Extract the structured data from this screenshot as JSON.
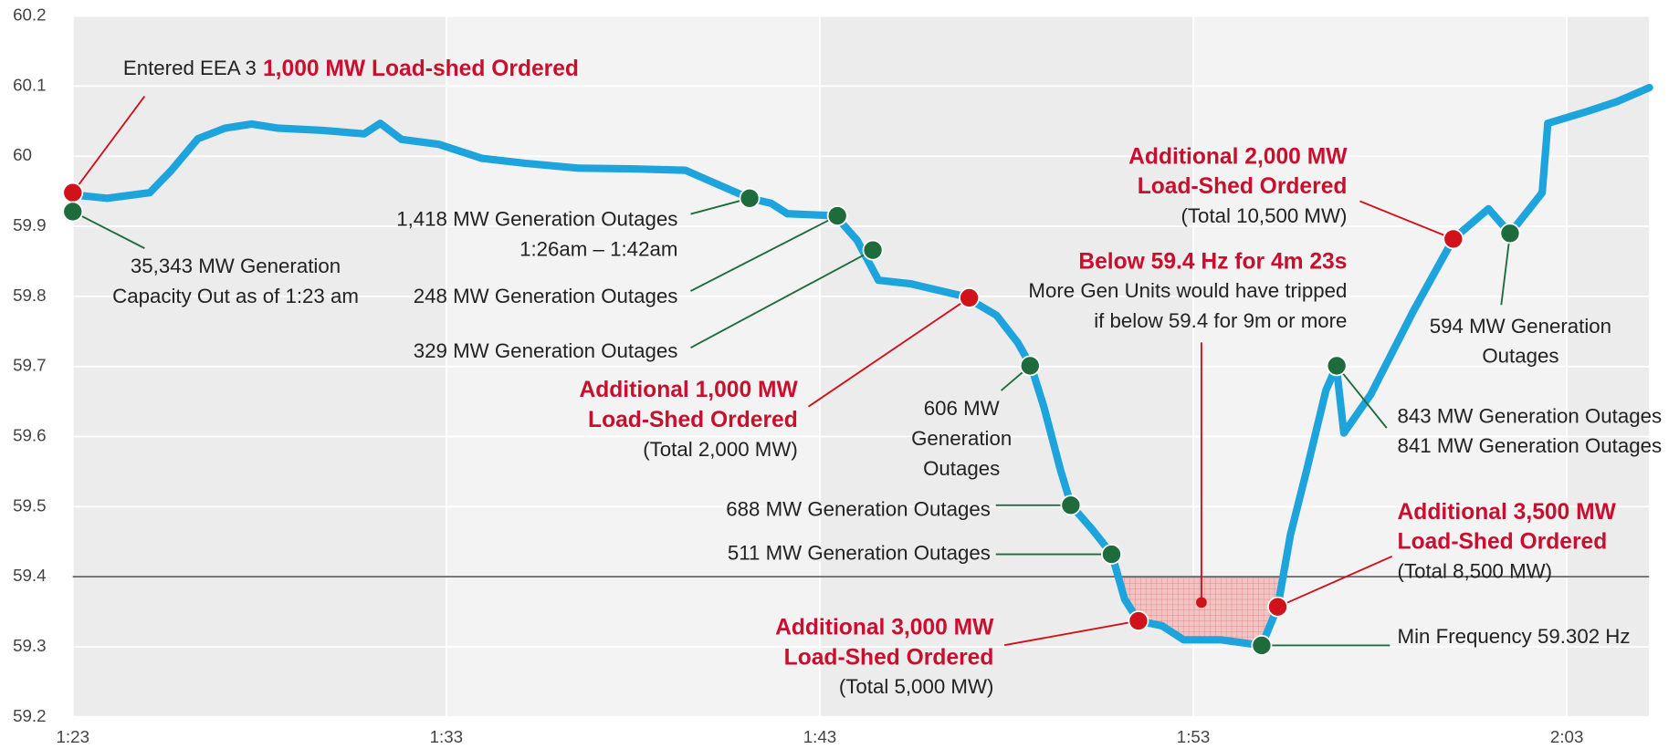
{
  "chart_data": {
    "type": "line",
    "xlim": [
      83,
      125.2
    ],
    "ylim": [
      59.2,
      60.2
    ],
    "xticks": [
      {
        "value": 83,
        "label": "1:23"
      },
      {
        "value": 93,
        "label": "1:33"
      },
      {
        "value": 103,
        "label": "1:43"
      },
      {
        "value": 113,
        "label": "1:53"
      },
      {
        "value": 123,
        "label": "2:03"
      }
    ],
    "yticks": [
      59.2,
      59.3,
      59.4,
      59.5,
      59.6,
      59.7,
      59.8,
      59.9,
      60,
      60.1,
      60.2
    ],
    "threshold": 59.4,
    "grid": true,
    "series": [
      {
        "color": "#1ea4dc",
        "x": [
          83,
          83.92,
          85.06,
          85.64,
          86.35,
          87.07,
          87.79,
          88.5,
          89.65,
          90.8,
          91.23,
          91.8,
          92.8,
          93.95,
          95.1,
          96.53,
          97.96,
          99.4,
          101.12,
          101.69,
          102.13,
          103.42,
          104.0,
          104.57,
          105.43,
          106.87,
          107.73,
          108.3,
          108.66,
          109.0,
          109.45,
          109.73,
          110.3,
          110.82,
          111.16,
          111.53,
          112.16,
          112.74,
          113.74,
          114.83,
          115.26,
          115.6,
          116.03,
          116.55,
          116.83,
          117.03,
          117.75,
          118.9,
          119.96,
          120.9,
          121.48,
          122.34,
          122.49,
          123.49,
          124.35,
          125.21
        ],
        "values": [
          59.945,
          59.94,
          59.948,
          59.98,
          60.025,
          60.04,
          60.046,
          60.04,
          60.037,
          60.032,
          60.047,
          60.024,
          60.017,
          59.997,
          59.99,
          59.983,
          59.982,
          59.98,
          59.94,
          59.933,
          59.918,
          59.915,
          59.88,
          59.823,
          59.818,
          59.8,
          59.773,
          59.734,
          59.7,
          59.642,
          59.551,
          59.502,
          59.467,
          59.432,
          59.368,
          59.337,
          59.33,
          59.31,
          59.31,
          59.302,
          59.357,
          59.46,
          59.551,
          59.666,
          59.7,
          59.605,
          59.66,
          59.78,
          59.882,
          59.925,
          59.89,
          59.948,
          60.047,
          60.063,
          60.078,
          60.098
        ]
      }
    ],
    "events": [
      {
        "x": 83,
        "y": 59.948,
        "color": "#d0121b",
        "lines": [
          [
            {
              "text": "Entered EEA 3",
              "color": "#222222"
            },
            {
              "text": "1,000 MW Load-shed Ordered",
              "color": "#c8102e"
            }
          ]
        ]
      },
      {
        "x": 83,
        "y": 59.921,
        "color": "#1e6b3c",
        "lines": [
          [
            {
              "text": "35,343 MW Generation",
              "color": "#222222"
            }
          ],
          [
            {
              "text": "Capacity Out as of 1:23 am",
              "color": "#222222"
            }
          ]
        ]
      },
      {
        "x": 101.12,
        "y": 59.94,
        "color": "#1e6b3c",
        "lines": [
          [
            {
              "text": "1,418 MW Generation Outages",
              "color": "#222222"
            }
          ],
          [
            {
              "text": "1:26am – 1:42am",
              "color": "#222222"
            }
          ]
        ]
      },
      {
        "x": 103.47,
        "y": 59.915,
        "color": "#1e6b3c",
        "lines": [
          [
            {
              "text": "248 MW Generation Outages",
              "color": "#222222"
            }
          ]
        ]
      },
      {
        "x": 104.42,
        "y": 59.866,
        "color": "#1e6b3c",
        "lines": [
          [
            {
              "text": "329 MW Generation Outages",
              "color": "#222222"
            }
          ]
        ]
      },
      {
        "x": 107.0,
        "y": 59.798,
        "color": "#d0121b",
        "lines": [
          [
            {
              "text": "Additional 1,000 MW",
              "color": "#c8102e"
            }
          ],
          [
            {
              "text": "Load-Shed Ordered",
              "color": "#c8102e"
            }
          ],
          [
            {
              "text": "(Total 2,000 MW)",
              "color": "#222222"
            }
          ]
        ]
      },
      {
        "x": 108.63,
        "y": 59.701,
        "color": "#1e6b3c",
        "lines": [
          [
            {
              "text": "606 MW",
              "color": "#222222"
            }
          ],
          [
            {
              "text": "Generation",
              "color": "#222222"
            }
          ],
          [
            {
              "text": "Outages",
              "color": "#222222"
            }
          ]
        ]
      },
      {
        "x": 109.72,
        "y": 59.502,
        "color": "#1e6b3c",
        "lines": [
          [
            {
              "text": "688 MW Generation Outages",
              "color": "#222222"
            }
          ]
        ]
      },
      {
        "x": 110.81,
        "y": 59.432,
        "color": "#1e6b3c",
        "lines": [
          [
            {
              "text": "511 MW Generation Outages",
              "color": "#222222"
            }
          ]
        ]
      },
      {
        "x": 111.53,
        "y": 59.337,
        "color": "#d0121b",
        "lines": [
          [
            {
              "text": "Additional 3,000 MW",
              "color": "#c8102e"
            }
          ],
          [
            {
              "text": "Load-Shed Ordered",
              "color": "#c8102e"
            }
          ],
          [
            {
              "text": "(Total 5,000 MW)",
              "color": "#222222"
            }
          ]
        ]
      },
      {
        "x": 114.83,
        "y": 59.302,
        "color": "#1e6b3c",
        "lines": [
          [
            {
              "text": "Min Frequency 59.302 Hz",
              "color": "#222222"
            }
          ]
        ]
      },
      {
        "x": 115.26,
        "y": 59.357,
        "color": "#d0121b",
        "lines": [
          [
            {
              "text": "Additional 3,500 MW",
              "color": "#c8102e"
            }
          ],
          [
            {
              "text": "Load-Shed Ordered",
              "color": "#c8102e"
            }
          ],
          [
            {
              "text": "(Total 8,500 MW)",
              "color": "#222222"
            }
          ]
        ]
      },
      {
        "x": 116.84,
        "y": 59.701,
        "color": "#1e6b3c",
        "lines": [
          [
            {
              "text": "843 MW Generation Outages",
              "color": "#222222"
            }
          ],
          [
            {
              "text": "841 MW Generation Outages",
              "color": "#222222"
            }
          ]
        ]
      },
      {
        "x": 119.96,
        "y": 59.882,
        "color": "#d0121b",
        "lines": [
          [
            {
              "text": "Additional 2,000 MW",
              "color": "#c8102e"
            }
          ],
          [
            {
              "text": "Load-Shed Ordered",
              "color": "#c8102e"
            }
          ],
          [
            {
              "text": "(Total 10,500 MW)",
              "color": "#222222"
            }
          ]
        ]
      },
      {
        "x": 121.48,
        "y": 59.89,
        "color": "#1e6b3c",
        "lines": [
          [
            {
              "text": "594 MW Generation",
              "color": "#222222"
            }
          ],
          [
            {
              "text": "Outages",
              "color": "#222222"
            }
          ]
        ]
      }
    ],
    "region_note": {
      "color": "#d0121b",
      "lines": [
        [
          {
            "text": "Below 59.4 Hz for 4m 23s",
            "color": "#c8102e"
          }
        ],
        [
          {
            "text": "More Gen Units would have tripped",
            "color": "#222222"
          }
        ],
        [
          {
            "text": "if below 59.4 for 9m or more",
            "color": "#222222"
          }
        ]
      ]
    }
  }
}
